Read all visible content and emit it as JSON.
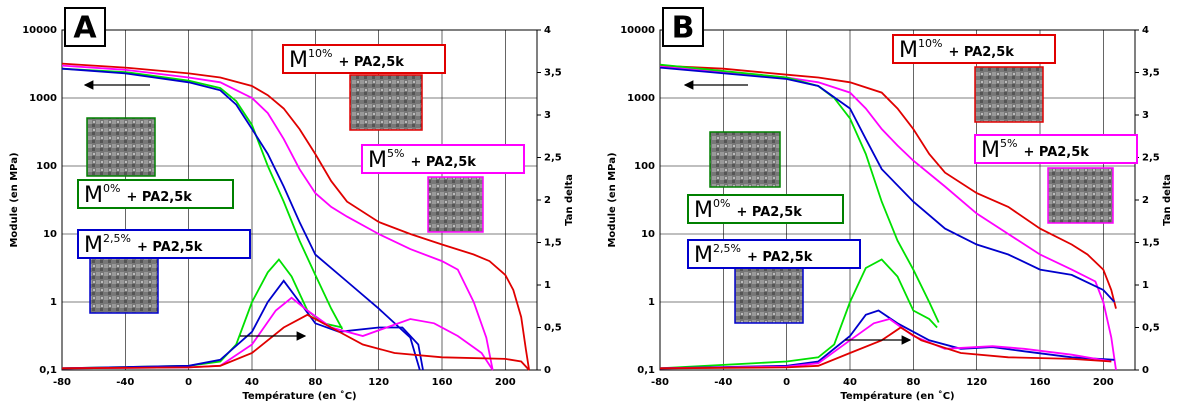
{
  "chart_data": [
    {
      "type": "line",
      "panel": "A",
      "xlabel": "Température (en ˚C)",
      "ylabel": "Module (en MPa)",
      "y2label": "Tan delta",
      "xlim": [
        -80,
        220
      ],
      "xticks": [
        -80,
        -40,
        0,
        40,
        80,
        120,
        160,
        200
      ],
      "ylim": [
        0.1,
        10000
      ],
      "log_y": true,
      "yticks": [
        {
          "value": 0.1,
          "label": "0,1"
        },
        1,
        10,
        100,
        1000,
        10000
      ],
      "y2lim": [
        0,
        4
      ],
      "y2ticks": [
        0,
        {
          "value": 0.5,
          "label": "0,5"
        },
        1,
        {
          "value": 1.5,
          "label": "1,5"
        },
        2,
        {
          "value": 2.5,
          "label": "2,5"
        },
        3,
        {
          "value": 3.5,
          "label": "3,5"
        },
        4
      ],
      "grid": true,
      "annotations": [
        {
          "base": "M",
          "sup": "10%",
          "rest": "+ PA2,5k",
          "color": "#e00000"
        },
        {
          "base": "M",
          "sup": "5%",
          "rest": "+ PA2,5k",
          "color": "#ff00ff"
        },
        {
          "base": "M",
          "sup": "0%",
          "rest": "+ PA2,5k",
          "color": "#008000"
        },
        {
          "base": "M",
          "sup": "2,5%",
          "rest": "+ PA2,5k",
          "color": "#0000cc"
        }
      ],
      "series": [
        {
          "color": "#e00000",
          "axis": "y",
          "x": [
            -80,
            -40,
            0,
            20,
            40,
            50,
            60,
            70,
            80,
            90,
            100,
            120,
            140,
            160,
            180,
            190,
            200,
            205,
            210,
            213,
            215
          ],
          "values": [
            3200,
            2800,
            2300,
            2000,
            1500,
            1100,
            700,
            350,
            150,
            60,
            30,
            15,
            10,
            7,
            5,
            4,
            2.5,
            1.5,
            0.6,
            0.2,
            0.1
          ]
        },
        {
          "color": "#ff00ff",
          "axis": "y",
          "x": [
            -80,
            -40,
            0,
            20,
            40,
            50,
            60,
            70,
            80,
            90,
            100,
            120,
            140,
            160,
            170,
            180,
            188,
            192
          ],
          "values": [
            3000,
            2600,
            2000,
            1700,
            1000,
            600,
            250,
            90,
            40,
            25,
            18,
            10,
            6,
            4,
            3,
            1,
            0.3,
            0.1
          ]
        },
        {
          "color": "#00e000",
          "axis": "y",
          "x": [
            -80,
            -40,
            0,
            20,
            30,
            40,
            50,
            60,
            70,
            80,
            90,
            97
          ],
          "values": [
            2700,
            2400,
            1800,
            1400,
            900,
            400,
            100,
            30,
            8,
            2.5,
            0.8,
            0.4
          ]
        },
        {
          "color": "#0000cc",
          "axis": "y",
          "x": [
            -80,
            -40,
            0,
            20,
            30,
            40,
            50,
            60,
            70,
            80,
            100,
            120,
            140,
            146
          ],
          "values": [
            2700,
            2300,
            1700,
            1300,
            800,
            350,
            150,
            50,
            15,
            5,
            2,
            0.8,
            0.3,
            0.1
          ]
        },
        {
          "color": "#00e000",
          "axis": "y2",
          "x": [
            -80,
            0,
            20,
            30,
            40,
            50,
            57,
            65,
            75,
            85,
            97
          ],
          "values": [
            0.02,
            0.05,
            0.1,
            0.3,
            0.8,
            1.15,
            1.3,
            1.1,
            0.7,
            0.55,
            0.5
          ]
        },
        {
          "color": "#0000cc",
          "axis": "y2",
          "x": [
            -80,
            0,
            20,
            40,
            50,
            60,
            70,
            80,
            95,
            120,
            135,
            145,
            148
          ],
          "values": [
            0.02,
            0.05,
            0.12,
            0.45,
            0.8,
            1.05,
            0.8,
            0.55,
            0.45,
            0.5,
            0.5,
            0.3,
            0
          ]
        },
        {
          "color": "#ff00ff",
          "axis": "y2",
          "x": [
            -80,
            0,
            20,
            40,
            55,
            65,
            75,
            90,
            110,
            125,
            140,
            155,
            170,
            185,
            192
          ],
          "values": [
            0.02,
            0.03,
            0.05,
            0.3,
            0.7,
            0.85,
            0.7,
            0.5,
            0.4,
            0.5,
            0.6,
            0.55,
            0.4,
            0.2,
            0
          ]
        },
        {
          "color": "#e00000",
          "axis": "y2",
          "x": [
            -80,
            0,
            20,
            40,
            60,
            75,
            90,
            110,
            130,
            160,
            200,
            210,
            215
          ],
          "values": [
            0.02,
            0.03,
            0.05,
            0.2,
            0.5,
            0.65,
            0.5,
            0.3,
            0.2,
            0.15,
            0.13,
            0.1,
            0
          ]
        }
      ]
    },
    {
      "type": "line",
      "panel": "B",
      "xlabel": "Température (en ˚C)",
      "ylabel": "Module (en MPa)",
      "y2label": "Tan delta",
      "xlim": [
        -80,
        220
      ],
      "xticks": [
        -80,
        -40,
        0,
        40,
        80,
        120,
        160,
        200
      ],
      "ylim": [
        0.1,
        10000
      ],
      "log_y": true,
      "yticks": [
        {
          "value": 0.1,
          "label": "0,1"
        },
        1,
        10,
        100,
        1000,
        10000
      ],
      "y2lim": [
        0,
        4
      ],
      "y2ticks": [
        0,
        {
          "value": 0.5,
          "label": "0,5"
        },
        1,
        {
          "value": 1.5,
          "label": "1,5"
        },
        2,
        {
          "value": 2.5,
          "label": "2,5"
        },
        3,
        {
          "value": 3.5,
          "label": "3,5"
        },
        4
      ],
      "grid": true,
      "annotations": [
        {
          "base": "M",
          "sup": "10%",
          "rest": "+ PA2,5k",
          "color": "#e00000"
        },
        {
          "base": "M",
          "sup": "5%",
          "rest": "+ PA2,5k",
          "color": "#ff00ff"
        },
        {
          "base": "M",
          "sup": "0%",
          "rest": "+ PA2,5k",
          "color": "#008000"
        },
        {
          "base": "M",
          "sup": "2,5%",
          "rest": "+ PA2,5k",
          "color": "#0000cc"
        }
      ],
      "series": [
        {
          "color": "#e00000",
          "axis": "y",
          "x": [
            -80,
            -40,
            0,
            20,
            40,
            60,
            70,
            80,
            90,
            100,
            120,
            140,
            160,
            180,
            190,
            200,
            205,
            208
          ],
          "values": [
            3000,
            2700,
            2200,
            2000,
            1700,
            1200,
            700,
            350,
            150,
            80,
            40,
            25,
            12,
            7,
            5,
            3,
            1.5,
            0.8
          ]
        },
        {
          "color": "#ff00ff",
          "axis": "y",
          "x": [
            -80,
            0,
            20,
            40,
            50,
            60,
            70,
            80,
            100,
            120,
            140,
            160,
            180,
            195,
            200,
            205,
            208
          ],
          "values": [
            2900,
            2000,
            1700,
            1200,
            700,
            350,
            200,
            120,
            50,
            20,
            10,
            5,
            3,
            2,
            1,
            0.3,
            0.1
          ]
        },
        {
          "color": "#00e000",
          "axis": "y",
          "x": [
            -80,
            0,
            20,
            30,
            40,
            50,
            60,
            70,
            80,
            90,
            96
          ],
          "values": [
            3100,
            2000,
            1500,
            1000,
            500,
            150,
            30,
            8,
            3,
            1,
            0.5
          ]
        },
        {
          "color": "#0000cc",
          "axis": "y",
          "x": [
            -80,
            0,
            20,
            40,
            50,
            60,
            80,
            100,
            120,
            140,
            160,
            180,
            200,
            207
          ],
          "values": [
            2800,
            1900,
            1500,
            700,
            250,
            90,
            30,
            12,
            7,
            5,
            3,
            2.5,
            1.5,
            1
          ]
        },
        {
          "color": "#00e000",
          "axis": "y2",
          "x": [
            -80,
            0,
            20,
            30,
            40,
            50,
            60,
            70,
            80,
            90,
            95
          ],
          "values": [
            0.02,
            0.1,
            0.15,
            0.3,
            0.8,
            1.2,
            1.3,
            1.1,
            0.7,
            0.6,
            0.5
          ]
        },
        {
          "color": "#0000cc",
          "axis": "y2",
          "x": [
            -80,
            0,
            20,
            40,
            50,
            58,
            70,
            90,
            110,
            130,
            150,
            180,
            207
          ],
          "values": [
            0.02,
            0.05,
            0.1,
            0.4,
            0.65,
            0.7,
            0.55,
            0.35,
            0.25,
            0.27,
            0.22,
            0.15,
            0.12
          ]
        },
        {
          "color": "#ff00ff",
          "axis": "y2",
          "x": [
            -80,
            0,
            20,
            40,
            55,
            65,
            80,
            100,
            130,
            150,
            180,
            205
          ],
          "values": [
            0.02,
            0.04,
            0.08,
            0.35,
            0.55,
            0.6,
            0.4,
            0.25,
            0.28,
            0.25,
            0.18,
            0.1
          ]
        },
        {
          "color": "#e00000",
          "axis": "y2",
          "x": [
            -80,
            0,
            20,
            40,
            60,
            72,
            85,
            110,
            140,
            180,
            205
          ],
          "values": [
            0.02,
            0.03,
            0.05,
            0.2,
            0.35,
            0.5,
            0.35,
            0.2,
            0.15,
            0.13,
            0.1
          ]
        }
      ]
    }
  ]
}
